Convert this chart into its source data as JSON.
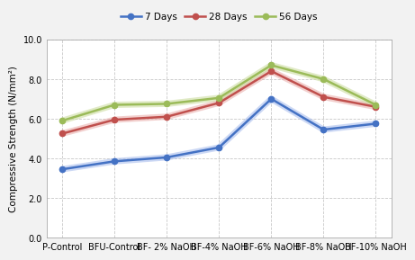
{
  "categories": [
    "P-Control",
    "BFU-Control",
    "BF- 2% NaOH",
    "BF-4% NaOH",
    "BF-6% NaOH",
    "BF-8% NaOH",
    "BF-10% NaOH"
  ],
  "series": [
    {
      "label": "7 Days",
      "color": "#4472C4",
      "glow_color": "#AABFEE",
      "values": [
        3.45,
        3.85,
        4.05,
        4.55,
        7.0,
        5.45,
        5.75
      ]
    },
    {
      "label": "28 Days",
      "color": "#C0504D",
      "glow_color": "#EAAFAD",
      "values": [
        5.25,
        5.95,
        6.1,
        6.8,
        8.4,
        7.1,
        6.6
      ]
    },
    {
      "label": "56 Days",
      "color": "#9BBB59",
      "glow_color": "#CCDDA0",
      "values": [
        5.9,
        6.7,
        6.75,
        7.05,
        8.7,
        8.0,
        6.7
      ]
    }
  ],
  "ylabel": "Compressive Strength (N/mm²)",
  "ylim": [
    0.0,
    10.0
  ],
  "yticks": [
    0.0,
    2.0,
    4.0,
    6.0,
    8.0,
    10.0
  ],
  "background_color": "#F2F2F2",
  "plot_bg_color": "#FFFFFF",
  "grid_color": "#C8C8C8",
  "marker": "o",
  "linewidth": 1.8,
  "markersize": 4.5,
  "glow_linewidth": 5.0
}
